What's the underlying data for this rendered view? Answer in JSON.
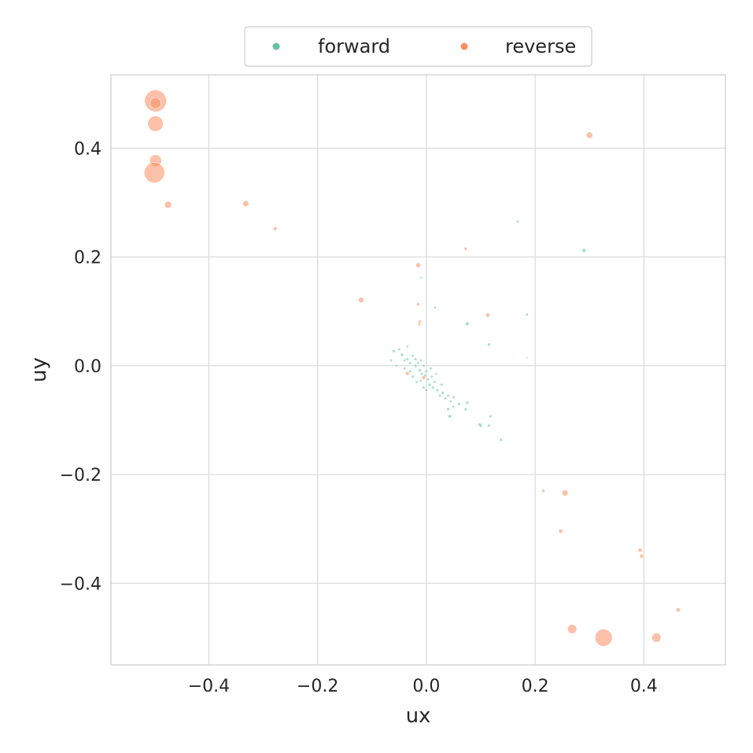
{
  "chart_data": {
    "type": "scatter",
    "title": "",
    "xlabel": "ux",
    "ylabel": "uy",
    "xlim": [
      -0.58,
      0.55
    ],
    "ylim": [
      -0.55,
      0.535
    ],
    "xticks": [
      -0.4,
      -0.2,
      0.0,
      0.2,
      0.4
    ],
    "yticks": [
      -0.4,
      -0.2,
      0.0,
      0.2,
      0.4
    ],
    "xtick_labels": [
      "−0.4",
      "−0.2",
      "0.0",
      "0.2",
      "0.4"
    ],
    "ytick_labels": [
      "−0.4",
      "−0.2",
      "0.0",
      "0.2",
      "0.4"
    ],
    "grid": true,
    "legend_position": "top-center",
    "colors": {
      "forward": "#66c2a5",
      "reverse": "#fc8d62"
    },
    "series": [
      {
        "name": "forward",
        "color": "#66c2a5",
        "points": [
          [
            0.168,
            0.265,
            0.6
          ],
          [
            0.29,
            0.212,
            1.5
          ],
          [
            -0.01,
            0.162,
            0.4
          ],
          [
            0.016,
            0.107,
            0.6
          ],
          [
            0.075,
            0.077,
            1.2
          ],
          [
            0.185,
            0.094,
            0.7
          ],
          [
            0.115,
            0.039,
            0.8
          ],
          [
            0.185,
            0.015,
            0.3
          ],
          [
            -0.06,
            0.027,
            0.8
          ],
          [
            -0.05,
            0.03,
            0.6
          ],
          [
            -0.035,
            0.035,
            0.5
          ],
          [
            -0.045,
            0.02,
            0.8
          ],
          [
            -0.04,
            0.01,
            0.6
          ],
          [
            -0.035,
            0.012,
            0.7
          ],
          [
            -0.03,
            0.005,
            0.7
          ],
          [
            -0.025,
            0.018,
            0.6
          ],
          [
            -0.02,
            0.0,
            0.8
          ],
          [
            -0.02,
            0.012,
            0.7
          ],
          [
            -0.015,
            0.005,
            0.6
          ],
          [
            -0.012,
            -0.008,
            0.8
          ],
          [
            -0.01,
            0.01,
            0.6
          ],
          [
            -0.008,
            -0.015,
            0.7
          ],
          [
            -0.005,
            0.0,
            0.6
          ],
          [
            -0.002,
            -0.018,
            0.8
          ],
          [
            0.0,
            -0.01,
            0.7
          ],
          [
            0.003,
            -0.025,
            0.6
          ],
          [
            0.006,
            -0.035,
            0.8
          ],
          [
            0.01,
            -0.02,
            0.6
          ],
          [
            0.012,
            -0.04,
            0.7
          ],
          [
            0.015,
            -0.03,
            0.6
          ],
          [
            -0.03,
            -0.01,
            0.6
          ],
          [
            -0.025,
            -0.02,
            0.7
          ],
          [
            -0.018,
            -0.03,
            0.6
          ],
          [
            -0.01,
            -0.028,
            0.6
          ],
          [
            -0.005,
            -0.04,
            0.7
          ],
          [
            0.0,
            -0.045,
            0.6
          ],
          [
            0.02,
            -0.045,
            0.7
          ],
          [
            0.025,
            -0.055,
            0.6
          ],
          [
            0.03,
            -0.05,
            0.8
          ],
          [
            0.035,
            -0.06,
            0.6
          ],
          [
            0.04,
            -0.055,
            0.7
          ],
          [
            0.045,
            -0.065,
            0.6
          ],
          [
            0.05,
            -0.058,
            0.7
          ],
          [
            0.028,
            -0.035,
            0.6
          ],
          [
            0.04,
            -0.08,
            0.8
          ],
          [
            0.043,
            -0.093,
            1.0
          ],
          [
            0.05,
            -0.075,
            0.6
          ],
          [
            0.06,
            -0.07,
            0.7
          ],
          [
            0.075,
            -0.068,
            0.8
          ],
          [
            0.072,
            -0.08,
            0.7
          ],
          [
            0.1,
            -0.11,
            1.1
          ],
          [
            0.115,
            -0.11,
            0.7
          ],
          [
            0.118,
            -0.093,
            0.7
          ],
          [
            0.137,
            -0.136,
            0.8
          ],
          [
            0.098,
            -0.108,
            0.7
          ],
          [
            -0.065,
            0.01,
            0.6
          ],
          [
            -0.055,
            0.0,
            0.5
          ],
          [
            -0.04,
            -0.005,
            0.6
          ],
          [
            0.008,
            -0.005,
            0.6
          ],
          [
            0.018,
            -0.015,
            0.5
          ]
        ]
      },
      {
        "name": "reverse",
        "color": "#fc8d62",
        "points": [
          [
            -0.498,
            0.487,
            40
          ],
          [
            -0.498,
            0.483,
            10
          ],
          [
            -0.498,
            0.445,
            20
          ],
          [
            -0.498,
            0.377,
            12
          ],
          [
            -0.5,
            0.355,
            35
          ],
          [
            -0.475,
            0.296,
            4
          ],
          [
            -0.332,
            0.298,
            3
          ],
          [
            -0.278,
            0.252,
            1.2
          ],
          [
            -0.12,
            0.121,
            2.5
          ],
          [
            -0.015,
            0.185,
            2.0
          ],
          [
            -0.015,
            0.113,
            0.9
          ],
          [
            -0.012,
            0.081,
            0.9
          ],
          [
            -0.013,
            0.076,
            0.7
          ],
          [
            0.072,
            0.215,
            0.8
          ],
          [
            0.113,
            0.093,
            1.5
          ],
          [
            0.3,
            0.424,
            3.5
          ],
          [
            -0.035,
            -0.014,
            1.3
          ],
          [
            -0.005,
            -0.022,
            1.3
          ],
          [
            0.215,
            -0.23,
            0.8
          ],
          [
            0.255,
            -0.234,
            3.0
          ],
          [
            0.247,
            -0.304,
            1.5
          ],
          [
            0.393,
            -0.339,
            1.4
          ],
          [
            0.396,
            -0.35,
            1.4
          ],
          [
            0.463,
            -0.449,
            1.6
          ],
          [
            0.268,
            -0.484,
            7
          ],
          [
            0.326,
            -0.5,
            25
          ],
          [
            0.423,
            -0.5,
            7
          ]
        ]
      }
    ]
  }
}
